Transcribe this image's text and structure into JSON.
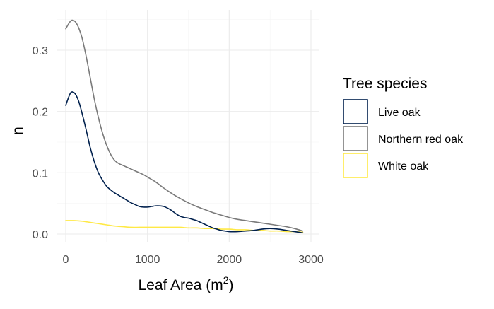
{
  "chart_data": {
    "type": "line",
    "title": "",
    "xlabel": "Leaf Area (m",
    "xlabel_superscript": "2",
    "xlabel_suffix": ")",
    "ylabel": "n",
    "xlim": [
      -50,
      3000
    ],
    "ylim": [
      -0.01,
      0.36
    ],
    "x_ticks": [
      0,
      1000,
      2000,
      3000
    ],
    "y_ticks": [
      0.0,
      0.1,
      0.2,
      0.3
    ],
    "x_tick_labels": [
      "0",
      "1000",
      "2000",
      "3000"
    ],
    "y_tick_labels": [
      "0.0",
      "0.1",
      "0.2",
      "0.3"
    ],
    "grid": true,
    "legend": {
      "title": "Tree species",
      "placement": "right"
    },
    "series": [
      {
        "name": "Live oak",
        "color": "#00204d",
        "x": [
          0,
          50,
          80,
          120,
          160,
          200,
          250,
          300,
          350,
          400,
          450,
          500,
          550,
          600,
          650,
          700,
          750,
          800,
          850,
          900,
          950,
          1000,
          1050,
          1100,
          1150,
          1200,
          1250,
          1300,
          1350,
          1400,
          1450,
          1500,
          1550,
          1600,
          1650,
          1700,
          1750,
          1800,
          1850,
          1900,
          1950,
          2000,
          2100,
          2200,
          2300,
          2400,
          2500,
          2600,
          2700,
          2800,
          2900
        ],
        "values": [
          0.21,
          0.228,
          0.232,
          0.228,
          0.216,
          0.197,
          0.17,
          0.141,
          0.118,
          0.1,
          0.088,
          0.078,
          0.072,
          0.067,
          0.063,
          0.059,
          0.055,
          0.051,
          0.048,
          0.045,
          0.044,
          0.044,
          0.045,
          0.046,
          0.046,
          0.045,
          0.042,
          0.038,
          0.033,
          0.029,
          0.027,
          0.026,
          0.024,
          0.022,
          0.019,
          0.016,
          0.013,
          0.01,
          0.008,
          0.006,
          0.005,
          0.004,
          0.004,
          0.005,
          0.006,
          0.008,
          0.009,
          0.008,
          0.006,
          0.004,
          0.002
        ]
      },
      {
        "name": "Northern red oak",
        "color": "#7a7a7a",
        "x": [
          0,
          50,
          80,
          120,
          160,
          200,
          250,
          300,
          350,
          400,
          450,
          500,
          550,
          600,
          650,
          700,
          750,
          800,
          850,
          900,
          950,
          1000,
          1100,
          1200,
          1300,
          1400,
          1500,
          1600,
          1700,
          1800,
          1900,
          2000,
          2100,
          2200,
          2300,
          2400,
          2500,
          2600,
          2700,
          2800,
          2900
        ],
        "values": [
          0.335,
          0.346,
          0.349,
          0.346,
          0.336,
          0.32,
          0.29,
          0.255,
          0.22,
          0.19,
          0.165,
          0.145,
          0.13,
          0.12,
          0.115,
          0.112,
          0.109,
          0.106,
          0.103,
          0.1,
          0.097,
          0.093,
          0.085,
          0.075,
          0.066,
          0.058,
          0.051,
          0.045,
          0.04,
          0.035,
          0.031,
          0.027,
          0.024,
          0.022,
          0.02,
          0.018,
          0.016,
          0.014,
          0.012,
          0.009,
          0.005
        ]
      },
      {
        "name": "White oak",
        "color": "#ffe945",
        "x": [
          0,
          100,
          200,
          300,
          400,
          500,
          600,
          700,
          800,
          900,
          1000,
          1100,
          1200,
          1300,
          1400,
          1500,
          1600,
          1700,
          1800,
          1900,
          2000,
          2100,
          2200,
          2300,
          2400,
          2500,
          2600,
          2700,
          2800,
          2900
        ],
        "values": [
          0.022,
          0.022,
          0.021,
          0.019,
          0.017,
          0.015,
          0.013,
          0.012,
          0.011,
          0.011,
          0.011,
          0.011,
          0.011,
          0.011,
          0.011,
          0.01,
          0.01,
          0.009,
          0.009,
          0.008,
          0.008,
          0.007,
          0.007,
          0.006,
          0.006,
          0.005,
          0.005,
          0.004,
          0.004,
          0.003
        ]
      }
    ]
  }
}
